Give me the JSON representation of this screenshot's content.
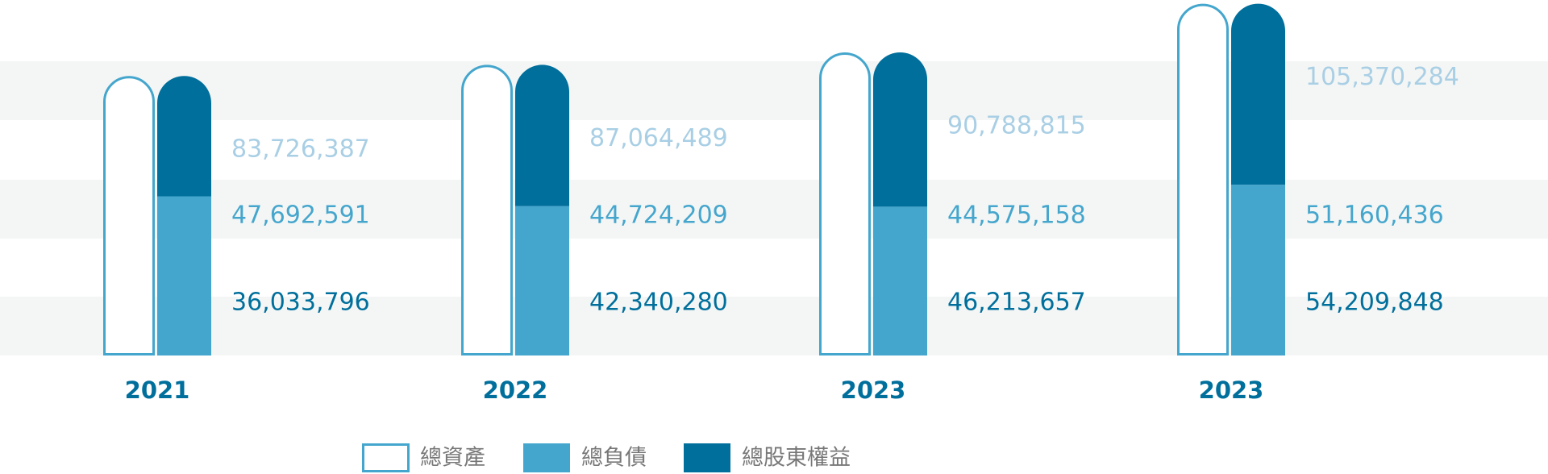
{
  "chart_data": {
    "type": "bar",
    "categories": [
      "2021",
      "2022",
      "2023",
      "2023"
    ],
    "series": [
      {
        "name": "總資產",
        "color": "#45a6cd",
        "label_color": "#a9cfe5",
        "values": [
          83726387,
          87064489,
          90788815,
          105370284
        ],
        "value_labels": [
          "83,726,387",
          "87,064,489",
          "90,788,815",
          "105,370,284"
        ]
      },
      {
        "name": "總負債",
        "color": "#45a6cd",
        "label_color": "#45a6cd",
        "values": [
          47692591,
          44724209,
          44575158,
          51160436
        ],
        "value_labels": [
          "47,692,591",
          "44,724,209",
          "44,575,158",
          "51,160,436"
        ]
      },
      {
        "name": "總股東權益",
        "color": "#006f9c",
        "label_color": "#006f9c",
        "values": [
          36033796,
          42340280,
          46213657,
          54209848
        ],
        "value_labels": [
          "36,033,796",
          "42,340,280",
          "46,213,657",
          "54,209,848"
        ]
      }
    ],
    "ylim": [
      0,
      106000000
    ],
    "category_color": "#006f9c"
  }
}
